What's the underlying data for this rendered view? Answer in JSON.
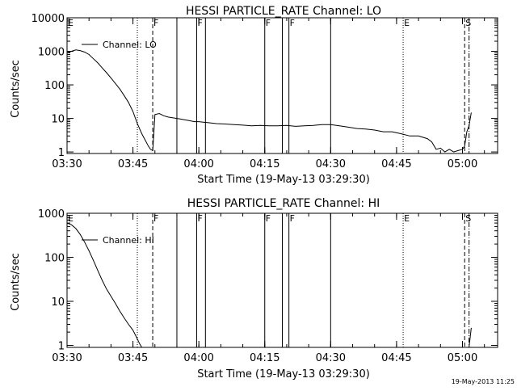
{
  "footer": {
    "timestamp": "19-May-2013 11:25"
  },
  "chart_data": [
    {
      "type": "line",
      "title": "HESSI PARTICLE_RATE Channel: LO",
      "xlabel": "Start Time (19-May-13 03:29:30)",
      "ylabel": "Counts/sec",
      "y_scale": "log",
      "ylim": [
        0.9,
        10000
      ],
      "xlim": [
        "03:30",
        "05:08"
      ],
      "x_ticks": [
        "03:30",
        "03:45",
        "04:00",
        "04:15",
        "04:30",
        "04:45",
        "05:00"
      ],
      "y_ticks": [
        "1",
        "10",
        "100",
        "1000",
        "10000"
      ],
      "legend": {
        "placement": "top-left",
        "entries": [
          "Channel: LO"
        ]
      },
      "markers": [
        {
          "time": "03:30",
          "label": "E",
          "style": "none"
        },
        {
          "time": "03:46",
          "label": "",
          "style": "dotted"
        },
        {
          "time": "03:49.5",
          "label": "F",
          "style": "dashed"
        },
        {
          "time": "03:55",
          "label": "",
          "style": "solid"
        },
        {
          "time": "03:59.5",
          "label": "F",
          "style": "solid"
        },
        {
          "time": "04:01.5",
          "label": "",
          "style": "solid"
        },
        {
          "time": "04:15",
          "label": "F",
          "style": "solid"
        },
        {
          "time": "04:19",
          "label": "",
          "style": "solid"
        },
        {
          "time": "04:20.5",
          "label": "F",
          "style": "solid"
        },
        {
          "time": "04:30",
          "label": "",
          "style": "solid"
        },
        {
          "time": "04:46.5",
          "label": "E",
          "style": "dotted"
        },
        {
          "time": "05:00.5",
          "label": "S",
          "style": "dashed"
        },
        {
          "time": "05:01.5",
          "label": "",
          "style": "dashdot"
        }
      ],
      "series": [
        {
          "name": "Channel: LO",
          "x": [
            "03:30",
            "03:31",
            "03:32",
            "03:33",
            "03:34",
            "03:35",
            "03:36",
            "03:37",
            "03:38",
            "03:39",
            "03:40",
            "03:41",
            "03:42",
            "03:43",
            "03:44",
            "03:45",
            "03:46",
            "03:47",
            "03:48",
            "03:48.5",
            "03:49",
            "03:49.5",
            "03:50",
            "03:51",
            "03:52",
            "03:53",
            "03:54",
            "03:55",
            "03:56",
            "03:57",
            "03:58",
            "03:59",
            "04:00",
            "04:02",
            "04:04",
            "04:06",
            "04:08",
            "04:10",
            "04:12",
            "04:14",
            "04:16",
            "04:18",
            "04:20",
            "04:22",
            "04:24",
            "04:26",
            "04:28",
            "04:30",
            "04:32",
            "04:34",
            "04:36",
            "04:38",
            "04:40",
            "04:42",
            "04:44",
            "04:46",
            "04:48",
            "04:50",
            "04:52",
            "04:53",
            "04:54",
            "04:55",
            "04:56",
            "04:57",
            "04:58",
            "04:59",
            "05:00",
            "05:00.5",
            "05:01",
            "05:01.5",
            "05:02"
          ],
          "values": [
            900,
            1000,
            1100,
            1050,
            950,
            800,
            600,
            450,
            320,
            230,
            160,
            110,
            75,
            48,
            30,
            16,
            7,
            3.5,
            2,
            1.5,
            1.2,
            1.1,
            13,
            14,
            12,
            11,
            10.5,
            10,
            9.5,
            9,
            8.5,
            8,
            8,
            7.5,
            7,
            6.8,
            6.5,
            6.3,
            6,
            6.2,
            6,
            6,
            6.2,
            5.8,
            6,
            6.2,
            6.5,
            6.5,
            6,
            5.5,
            5,
            4.8,
            4.5,
            4,
            4,
            3.5,
            3,
            3,
            2.5,
            2,
            1.2,
            1.3,
            1,
            1.2,
            1,
            1.1,
            1.2,
            1.5,
            4,
            6,
            15
          ]
        }
      ]
    },
    {
      "type": "line",
      "title": "HESSI PARTICLE_RATE Channel: HI",
      "xlabel": "Start Time (19-May-13 03:29:30)",
      "ylabel": "Counts/sec",
      "y_scale": "log",
      "ylim": [
        0.9,
        1000
      ],
      "xlim": [
        "03:30",
        "05:08"
      ],
      "x_ticks": [
        "03:30",
        "03:45",
        "04:00",
        "04:15",
        "04:30",
        "04:45",
        "05:00"
      ],
      "y_ticks": [
        "1",
        "10",
        "100",
        "1000"
      ],
      "legend": {
        "placement": "top-left",
        "entries": [
          "Channel: HI"
        ]
      },
      "markers": [
        {
          "time": "03:30",
          "label": "E",
          "style": "none"
        },
        {
          "time": "03:46",
          "label": "",
          "style": "dotted"
        },
        {
          "time": "03:49.5",
          "label": "F",
          "style": "dashed"
        },
        {
          "time": "03:55",
          "label": "",
          "style": "solid"
        },
        {
          "time": "03:59.5",
          "label": "F",
          "style": "solid"
        },
        {
          "time": "04:01.5",
          "label": "",
          "style": "solid"
        },
        {
          "time": "04:15",
          "label": "F",
          "style": "solid"
        },
        {
          "time": "04:19",
          "label": "",
          "style": "solid"
        },
        {
          "time": "04:20.5",
          "label": "F",
          "style": "solid"
        },
        {
          "time": "04:30",
          "label": "",
          "style": "solid"
        },
        {
          "time": "04:46.5",
          "label": "E",
          "style": "dotted"
        },
        {
          "time": "05:00.5",
          "label": "S",
          "style": "dashed"
        },
        {
          "time": "05:01.5",
          "label": "",
          "style": "dashdot"
        }
      ],
      "series": [
        {
          "name": "Channel: HI",
          "x": [
            "03:30",
            "03:31",
            "03:32",
            "03:33",
            "03:34",
            "03:35",
            "03:36",
            "03:37",
            "03:38",
            "03:39",
            "03:40",
            "03:41",
            "03:42",
            "03:43",
            "03:44",
            "03:45",
            "03:46",
            "03:46.5",
            "03:47",
            "05:01.5",
            "05:02"
          ],
          "values": [
            600,
            550,
            450,
            330,
            220,
            140,
            85,
            50,
            30,
            19,
            13,
            9,
            6,
            4.2,
            3,
            2.2,
            1.4,
            1.1,
            0.9,
            0.9,
            2.5
          ]
        }
      ]
    }
  ]
}
